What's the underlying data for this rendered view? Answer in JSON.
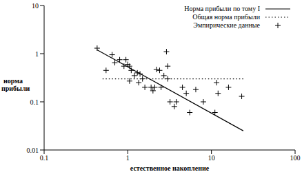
{
  "chart_data": {
    "type": "scatter",
    "x_label": "естественное накопление",
    "y_label": "норма прибыли",
    "log": true,
    "grid": false,
    "legend": "top-right",
    "xlim": [
      0.1,
      100
    ],
    "xticks": [
      0.1,
      1,
      10,
      100
    ],
    "ylim": [
      0.01,
      10
    ],
    "yticks": [
      0.01,
      0.1,
      1,
      10
    ],
    "series": [
      {
        "name": "Норма прибыли по тому I",
        "type": "line",
        "line_style": "solid",
        "color": "#000000",
        "x": [
          0.43,
          24
        ],
        "values": [
          1.2,
          0.025
        ]
      },
      {
        "name": "Общая норма прибыли",
        "type": "line",
        "line_style": "dotted",
        "color": "#000000",
        "x": [
          0.5,
          25
        ],
        "values": [
          0.3,
          0.3
        ]
      },
      {
        "name": "Эмпирические данные",
        "type": "scatter",
        "marker": "plus",
        "color": "#000000",
        "x": [
          0.43,
          0.55,
          0.65,
          0.7,
          0.8,
          0.9,
          0.95,
          1.0,
          1.05,
          1.1,
          1.05,
          1.2,
          1.3,
          1.35,
          1.4,
          1.5,
          1.6,
          1.9,
          2.0,
          2.1,
          2.2,
          2.4,
          2.5,
          2.7,
          2.9,
          3.0,
          3.0,
          3.2,
          3.6,
          3.8,
          4.5,
          5.0,
          5.5,
          6.5,
          8,
          11,
          11.5,
          12,
          16,
          23
        ],
        "values": [
          1.3,
          0.45,
          0.95,
          0.65,
          0.75,
          0.55,
          0.75,
          0.6,
          0.55,
          0.45,
          0.27,
          0.35,
          0.4,
          0.25,
          0.38,
          0.3,
          0.2,
          0.2,
          0.17,
          0.2,
          0.47,
          0.45,
          0.2,
          0.35,
          1.1,
          0.3,
          0.55,
          0.1,
          0.08,
          0.1,
          0.2,
          0.15,
          0.06,
          0.18,
          0.1,
          0.06,
          0.25,
          0.15,
          0.2,
          0.13
        ]
      }
    ]
  }
}
